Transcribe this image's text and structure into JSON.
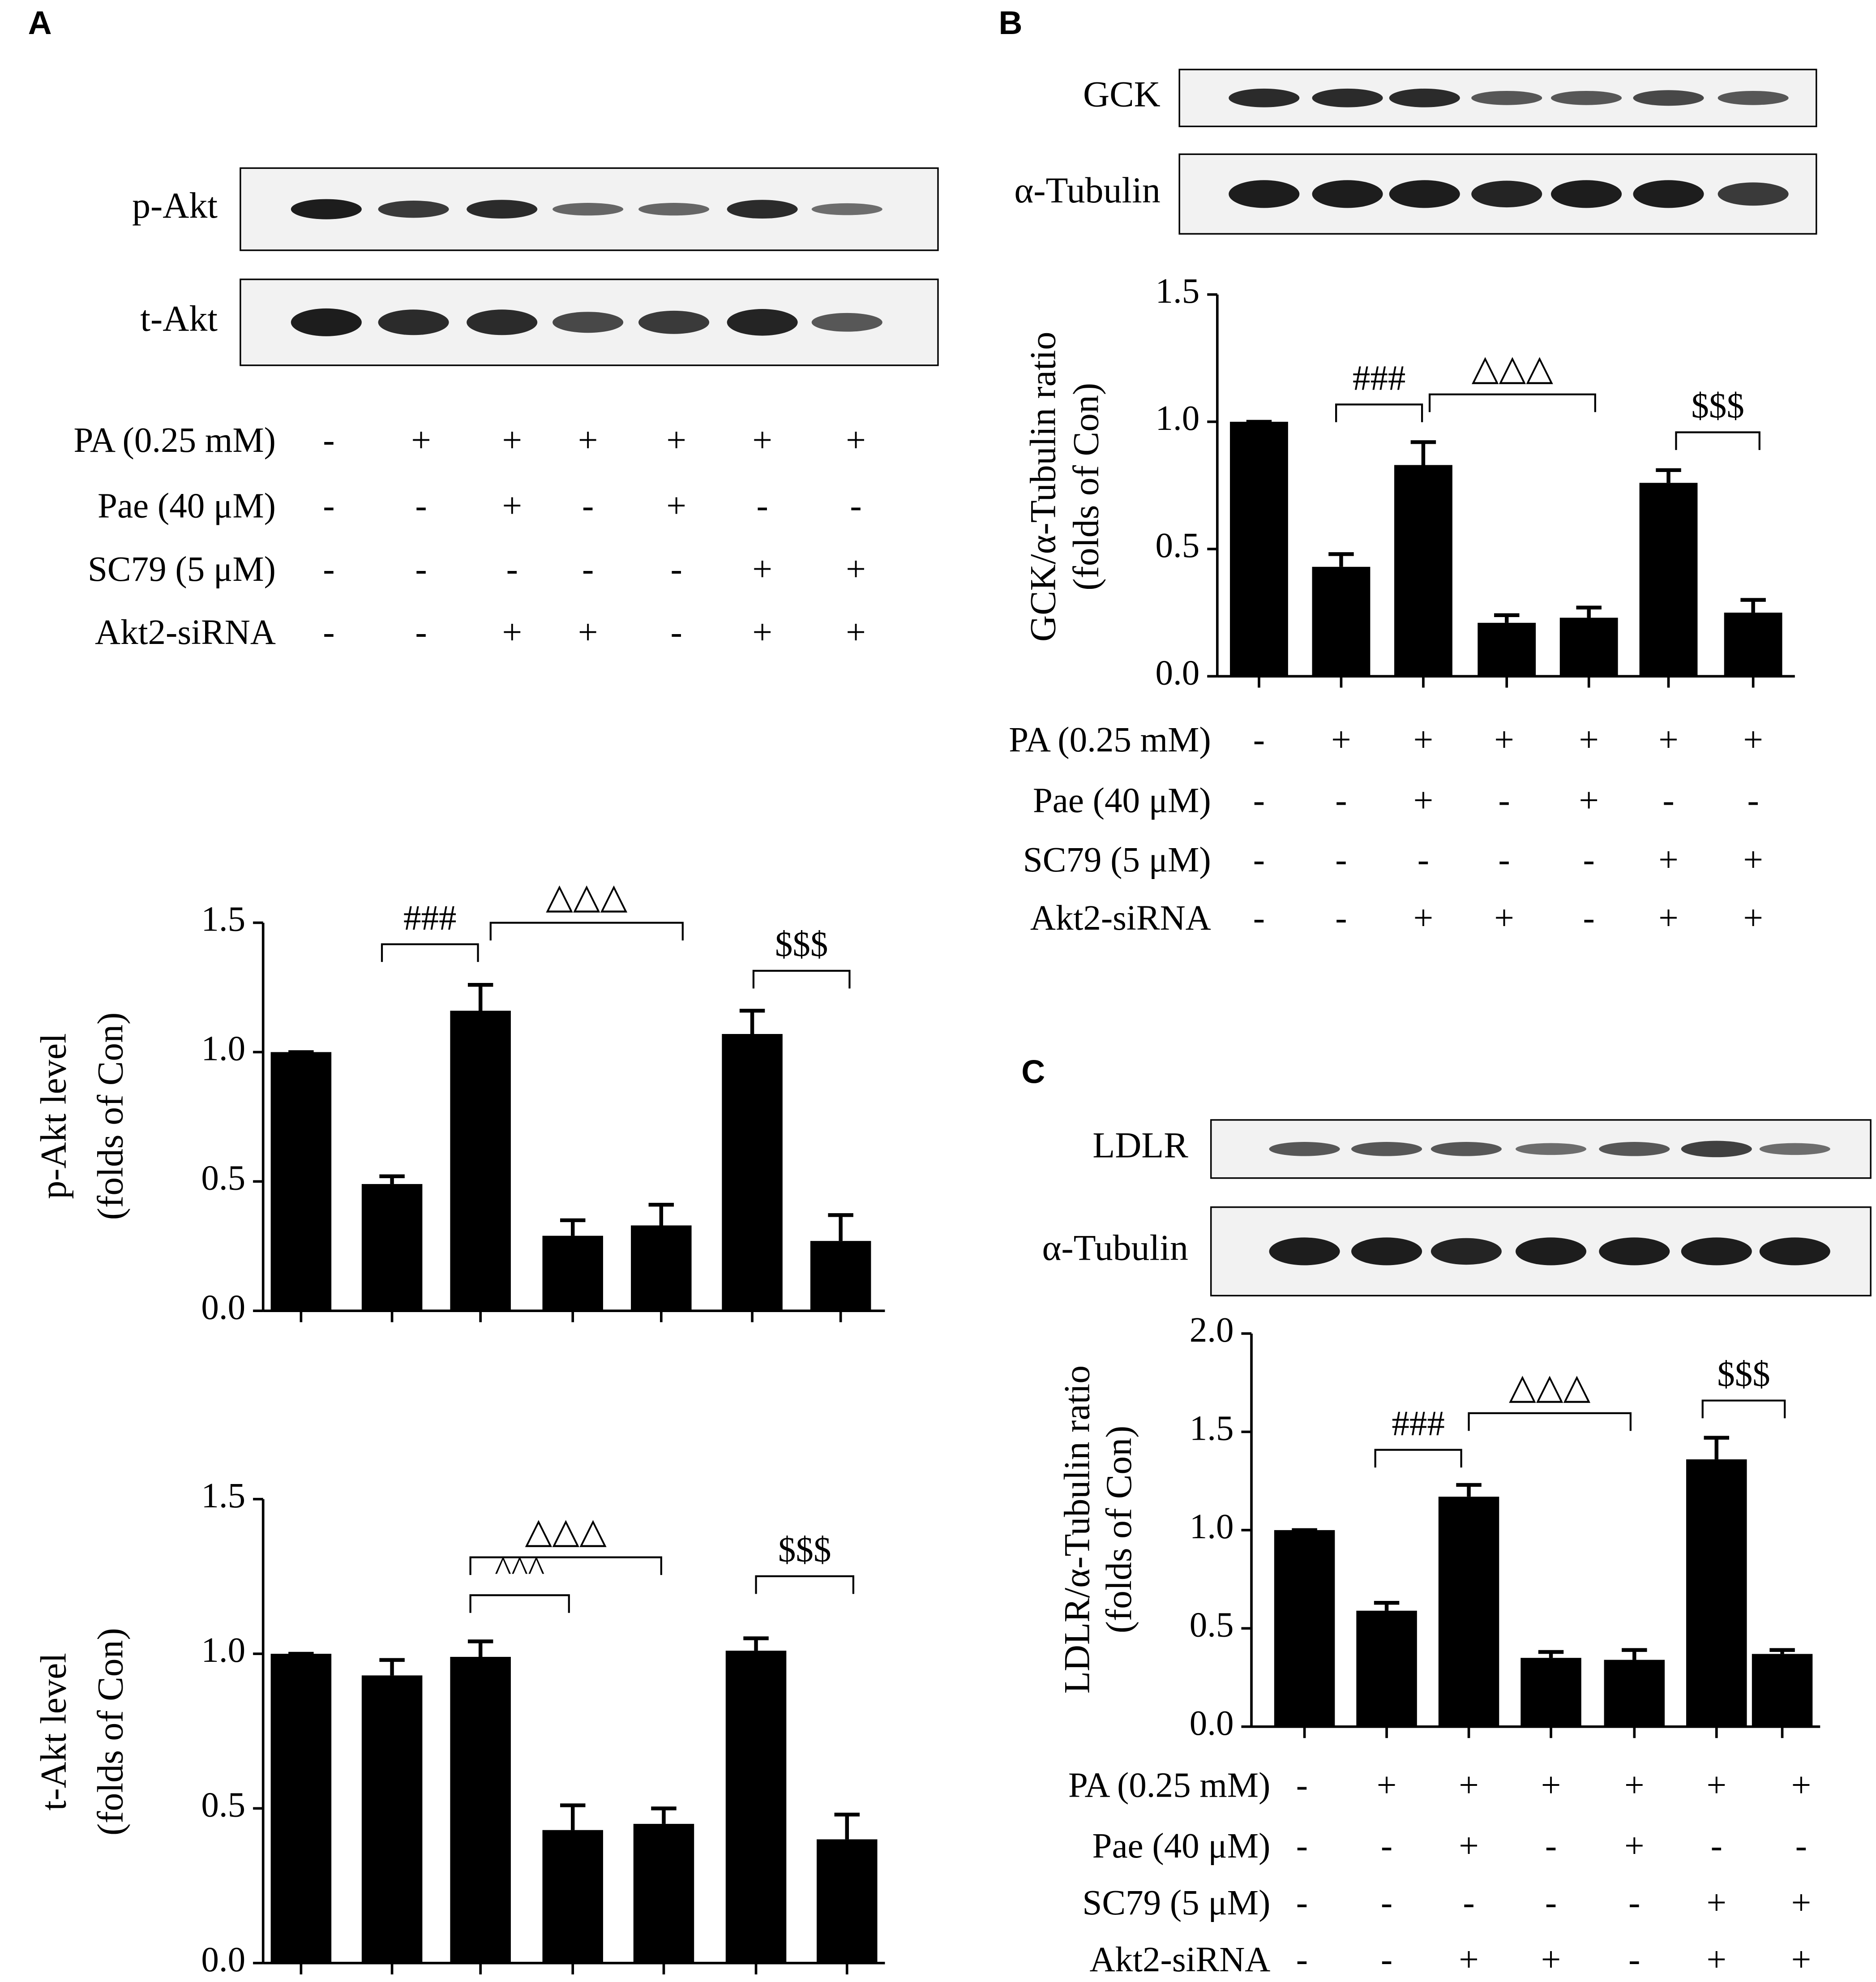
{
  "panels": [
    {
      "label": "A",
      "blots": [
        "p-Akt",
        "t-Akt"
      ],
      "treatments": [
        {
          "name": "PA (0.25 mM)",
          "signs": [
            "-",
            "+",
            "+",
            "+",
            "+",
            "+",
            "+"
          ]
        },
        {
          "name": "Pae (40 μM)",
          "signs": [
            "-",
            "-",
            "+",
            "-",
            "+",
            "-",
            "-"
          ]
        },
        {
          "name": "SC79 (5 μM)",
          "signs": [
            "-",
            "-",
            "-",
            "-",
            "-",
            "+",
            "+"
          ]
        },
        {
          "name": "Akt2-siRNA",
          "signs": [
            "-",
            "-",
            "+",
            "+",
            "-",
            "+",
            "+"
          ]
        }
      ]
    },
    {
      "label": "B",
      "blots": [
        "GCK",
        "α-Tubulin"
      ],
      "treatments": [
        {
          "name": "PA (0.25 mM)",
          "signs": [
            "-",
            "+",
            "+",
            "+",
            "+",
            "+",
            "+"
          ]
        },
        {
          "name": "Pae (40 μM)",
          "signs": [
            "-",
            "-",
            "+",
            "-",
            "+",
            "-",
            "-"
          ]
        },
        {
          "name": "SC79 (5 μM)",
          "signs": [
            "-",
            "-",
            "-",
            "-",
            "-",
            "+",
            "+"
          ]
        },
        {
          "name": "Akt2-siRNA",
          "signs": [
            "-",
            "-",
            "+",
            "+",
            "-",
            "+",
            "+"
          ]
        }
      ]
    },
    {
      "label": "C",
      "blots": [
        "LDLR",
        "α-Tubulin"
      ],
      "treatments": [
        {
          "name": "PA (0.25 mM)",
          "signs": [
            "-",
            "+",
            "+",
            "+",
            "+",
            "+",
            "+"
          ]
        },
        {
          "name": "Pae (40 μM)",
          "signs": [
            "-",
            "-",
            "+",
            "-",
            "+",
            "-",
            "-"
          ]
        },
        {
          "name": "SC79 (5 μM)",
          "signs": [
            "-",
            "-",
            "-",
            "-",
            "-",
            "+",
            "+"
          ]
        },
        {
          "name": "Akt2-siRNA",
          "signs": [
            "-",
            "-",
            "+",
            "+",
            "-",
            "+",
            "+"
          ]
        }
      ]
    }
  ],
  "chart_data": [
    {
      "type": "bar",
      "ylabel": [
        "p-Akt level",
        "(folds of Con)"
      ],
      "categories": [
        null,
        null,
        null,
        null,
        null,
        null,
        null
      ],
      "values": [
        1.0,
        0.49,
        1.16,
        0.29,
        0.33,
        1.07,
        0.27
      ],
      "errors": [
        0,
        0.03,
        0.1,
        0.06,
        0.08,
        0.09,
        0.1
      ],
      "color": "#000000",
      "ylim": [
        0,
        1.5
      ],
      "yticks": [
        {
          "value": 0,
          "label": "0.0"
        },
        0.5,
        {
          "value": 1,
          "label": "1.0"
        },
        1.5
      ],
      "annotations": [
        "###",
        "△△△",
        "$$$"
      ]
    },
    {
      "type": "bar",
      "ylabel": [
        "t-Akt level",
        "(folds of Con)"
      ],
      "categories": [
        null,
        null,
        null,
        null,
        null,
        null,
        null
      ],
      "values": [
        1.0,
        0.93,
        0.99,
        0.43,
        0.45,
        1.01,
        0.4
      ],
      "errors": [
        0,
        0.05,
        0.05,
        0.08,
        0.05,
        0.04,
        0.08
      ],
      "color": "#000000",
      "ylim": [
        0,
        1.5
      ],
      "yticks": [
        {
          "value": 0,
          "label": "0.0"
        },
        0.5,
        {
          "value": 1,
          "label": "1.0"
        },
        1.5
      ],
      "annotations": [
        "△△△",
        "^^^",
        "$$$"
      ]
    },
    {
      "type": "bar",
      "ylabel": [
        "GCK/α-Tubulin ratio",
        "(folds of Con)"
      ],
      "categories": [
        null,
        null,
        null,
        null,
        null,
        null,
        null
      ],
      "values": [
        1.0,
        0.43,
        0.83,
        0.21,
        0.23,
        0.76,
        0.25
      ],
      "errors": [
        0,
        0.05,
        0.09,
        0.03,
        0.04,
        0.05,
        0.05
      ],
      "color": "#000000",
      "ylim": [
        0,
        1.5
      ],
      "yticks": [
        {
          "value": 0,
          "label": "0.0"
        },
        0.5,
        {
          "value": 1,
          "label": "1.0"
        },
        1.5
      ],
      "annotations": [
        "###",
        "△△△",
        "$$$"
      ]
    },
    {
      "type": "bar",
      "ylabel": [
        "LDLR/α-Tubulin ratio",
        "(folds of Con)"
      ],
      "categories": [
        null,
        null,
        null,
        null,
        null,
        null,
        null
      ],
      "values": [
        1.0,
        0.59,
        1.17,
        0.35,
        0.34,
        1.36,
        0.37
      ],
      "errors": [
        0,
        0.04,
        0.06,
        0.03,
        0.05,
        0.11,
        0.02
      ],
      "color": "#000000",
      "ylim": [
        0,
        2
      ],
      "yticks": [
        {
          "value": 0,
          "label": "0.0"
        },
        0.5,
        {
          "value": 1,
          "label": "1.0"
        },
        1.5,
        {
          "value": 2,
          "label": "2.0"
        }
      ],
      "annotations": [
        "###",
        "△△△",
        "$$$"
      ]
    }
  ]
}
